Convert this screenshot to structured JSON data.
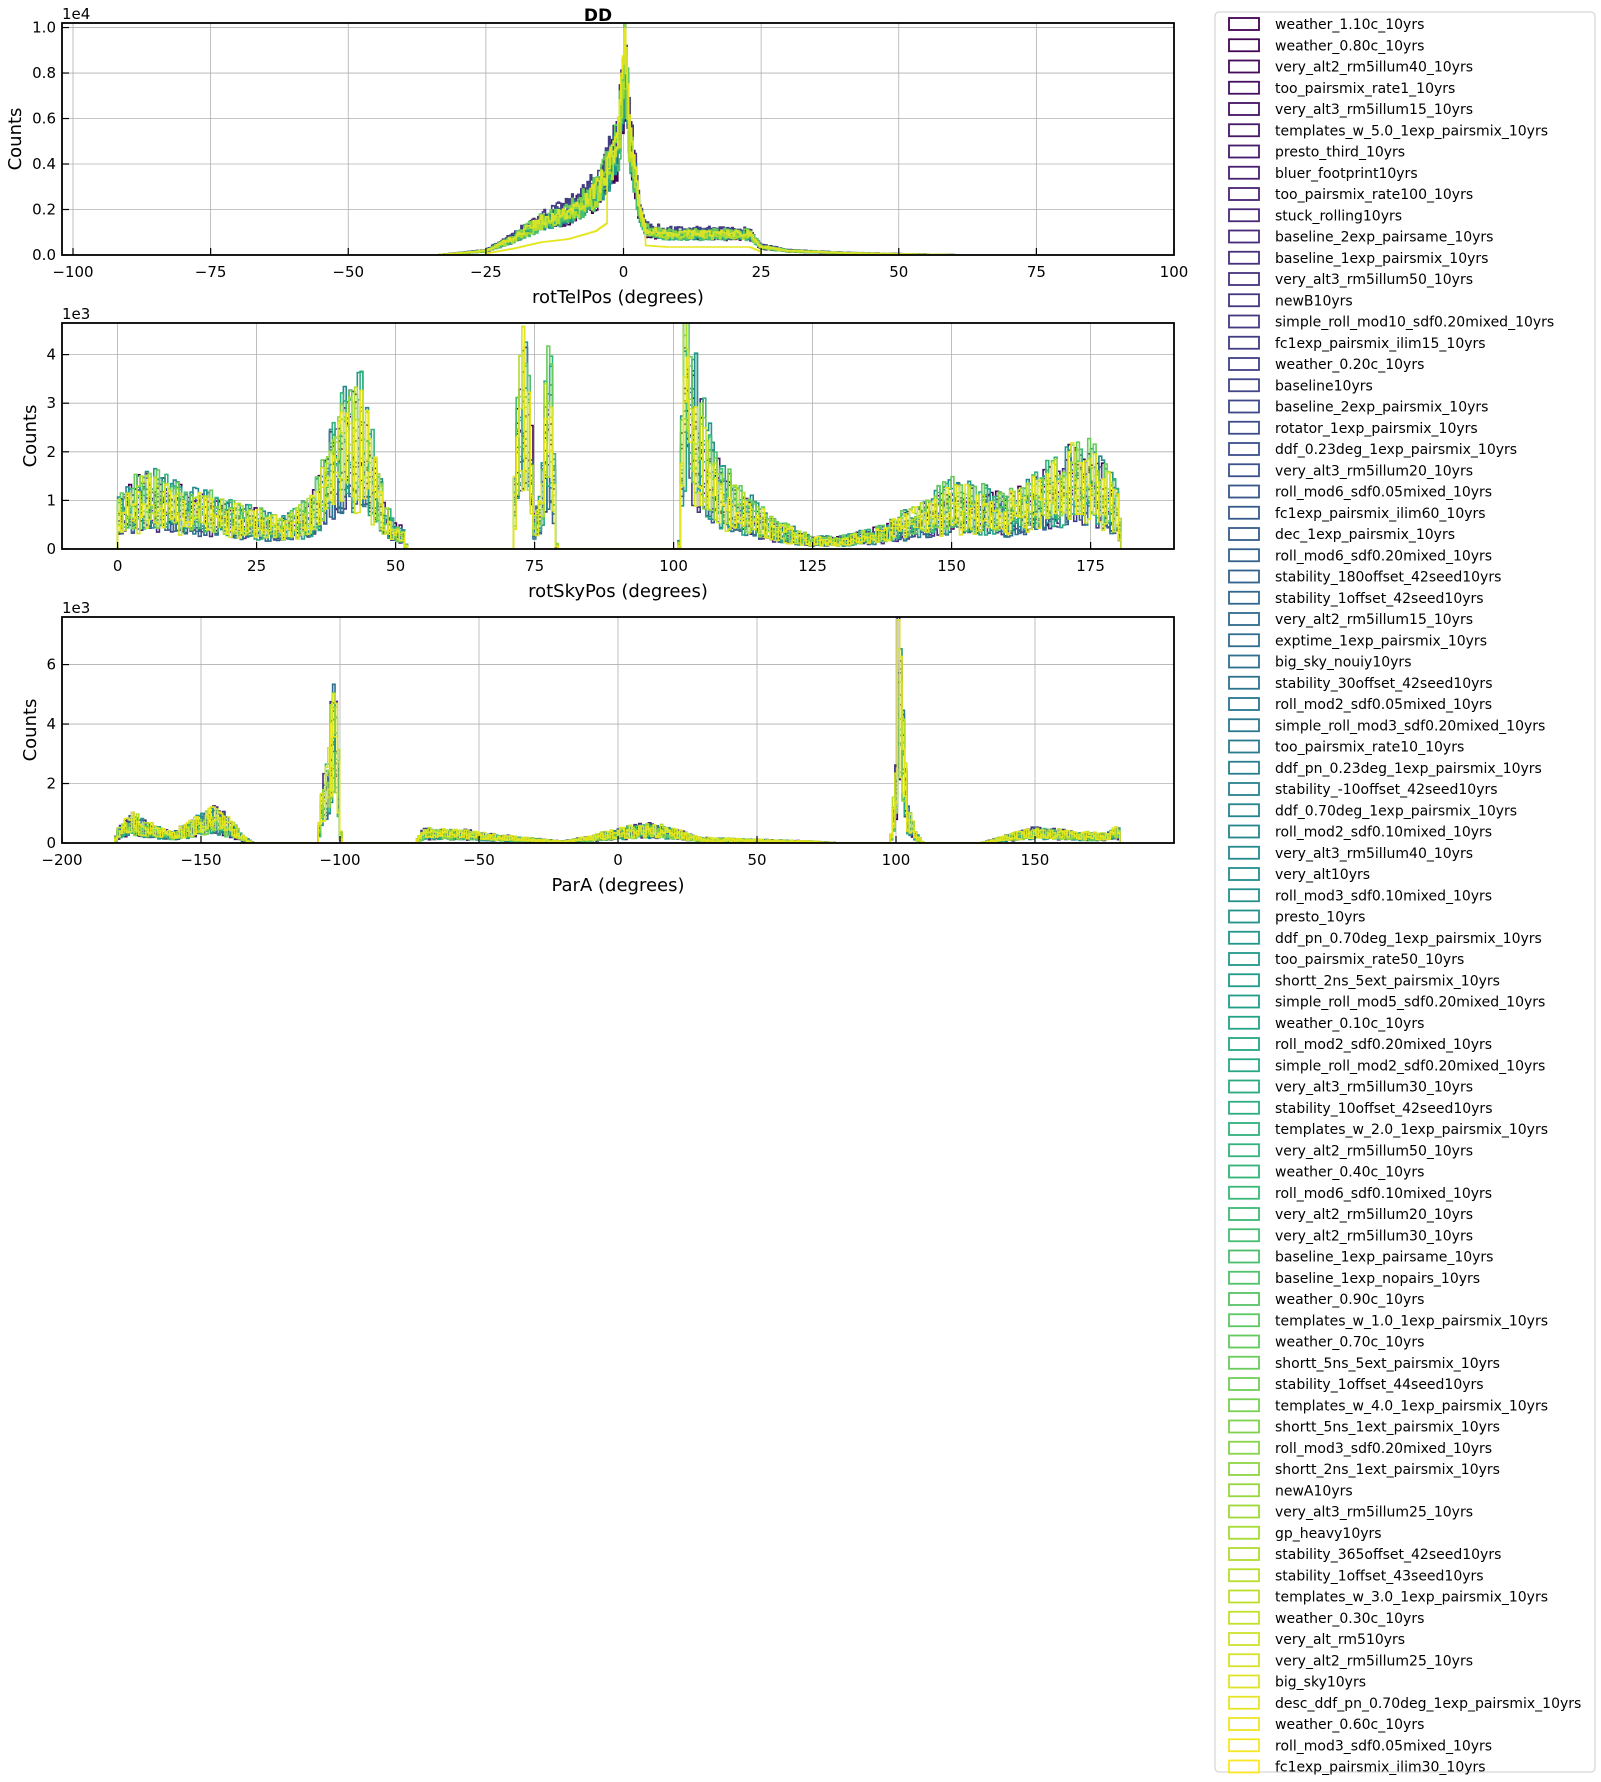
{
  "title": "DD",
  "chart_data": [
    {
      "type": "histogram",
      "xlabel": "rotTelPos (degrees)",
      "ylabel": "Counts",
      "y_multiplier": "1e4",
      "xlim": [
        -102,
        100
      ],
      "ylim": [
        0,
        1.02
      ],
      "xticks": [
        -100,
        -75,
        -50,
        -25,
        0,
        25,
        50,
        75,
        100
      ],
      "xtick_labels": [
        "−100",
        "−75",
        "−50",
        "−25",
        "0",
        "25",
        "50",
        "75",
        "100"
      ],
      "yticks": [
        0,
        0.2,
        0.4,
        0.6,
        0.8,
        1.0
      ],
      "ytick_labels": [
        "0.0",
        "0.2",
        "0.4",
        "0.6",
        "0.8",
        "1.0"
      ],
      "grid": true,
      "envelope": [
        [
          -34,
          0
        ],
        [
          -25,
          0.02
        ],
        [
          -20,
          0.08
        ],
        [
          -15,
          0.16
        ],
        [
          -10,
          0.2
        ],
        [
          -5,
          0.3
        ],
        [
          -3,
          0.4
        ],
        [
          -1,
          0.52
        ],
        [
          0,
          0.85
        ],
        [
          0.3,
          0.98
        ],
        [
          1,
          0.6
        ],
        [
          2,
          0.4
        ],
        [
          3,
          0.2
        ],
        [
          4,
          0.12
        ],
        [
          8,
          0.1
        ],
        [
          15,
          0.1
        ],
        [
          23,
          0.1
        ],
        [
          25,
          0.04
        ],
        [
          30,
          0.02
        ],
        [
          40,
          0.01
        ],
        [
          50,
          0.005
        ],
        [
          60,
          0.001
        ],
        [
          61,
          0
        ]
      ]
    },
    {
      "type": "histogram",
      "xlabel": "rotSkyPos (degrees)",
      "ylabel": "Counts",
      "y_multiplier": "1e3",
      "xlim": [
        -10,
        190
      ],
      "ylim": [
        0,
        4.65
      ],
      "xticks": [
        0,
        25,
        50,
        75,
        100,
        125,
        150,
        175
      ],
      "xtick_labels": [
        "0",
        "25",
        "50",
        "75",
        "100",
        "125",
        "150",
        "175"
      ],
      "yticks": [
        0,
        1,
        2,
        3,
        4
      ],
      "ytick_labels": [
        "0",
        "1",
        "2",
        "3",
        "4"
      ],
      "grid": true,
      "envelope": [
        [
          0,
          0.8
        ],
        [
          5,
          1.3
        ],
        [
          10,
          1.1
        ],
        [
          20,
          0.8
        ],
        [
          30,
          0.5
        ],
        [
          35,
          0.9
        ],
        [
          38,
          1.8
        ],
        [
          41,
          2.6
        ],
        [
          44,
          2.8
        ],
        [
          46,
          1.8
        ],
        [
          48,
          0.8
        ],
        [
          50,
          0.4
        ],
        [
          51.5,
          0.4
        ],
        [
          52,
          0
        ],
        [
          71,
          0
        ],
        [
          72,
          2.8
        ],
        [
          73,
          4.1
        ],
        [
          74,
          3.2
        ],
        [
          75,
          0.5
        ],
        [
          76,
          1.0
        ],
        [
          77,
          2.8
        ],
        [
          78,
          3.4
        ],
        [
          79,
          0
        ],
        [
          101,
          0
        ],
        [
          102,
          4.3
        ],
        [
          103,
          3.5
        ],
        [
          105,
          2.5
        ],
        [
          108,
          1.5
        ],
        [
          112,
          1.0
        ],
        [
          118,
          0.5
        ],
        [
          125,
          0.2
        ],
        [
          130,
          0.2
        ],
        [
          138,
          0.4
        ],
        [
          145,
          0.8
        ],
        [
          150,
          1.1
        ],
        [
          160,
          0.9
        ],
        [
          168,
          1.4
        ],
        [
          172,
          1.8
        ],
        [
          176,
          1.6
        ],
        [
          180,
          1.0
        ],
        [
          180.5,
          0
        ]
      ]
    },
    {
      "type": "histogram",
      "xlabel": "ParA (degrees)",
      "ylabel": "Counts",
      "y_multiplier": "1e3",
      "xlim": [
        -200,
        200
      ],
      "ylim": [
        0,
        7.6
      ],
      "xticks": [
        -200,
        -150,
        -100,
        -50,
        0,
        50,
        100,
        150
      ],
      "xtick_labels": [
        "−200",
        "−150",
        "−100",
        "−50",
        "0",
        "50",
        "100",
        "150"
      ],
      "yticks": [
        0,
        2,
        4,
        6
      ],
      "ytick_labels": [
        "0",
        "2",
        "4",
        "6"
      ],
      "grid": true,
      "envelope": [
        [
          -181,
          0
        ],
        [
          -180,
          0.4
        ],
        [
          -175,
          0.85
        ],
        [
          -170,
          0.6
        ],
        [
          -160,
          0.3
        ],
        [
          -150,
          0.8
        ],
        [
          -145,
          1.0
        ],
        [
          -140,
          0.7
        ],
        [
          -135,
          0.2
        ],
        [
          -131,
          0
        ],
        [
          -108,
          0
        ],
        [
          -106,
          1.8
        ],
        [
          -104,
          2.5
        ],
        [
          -102,
          5.7
        ],
        [
          -101,
          4.0
        ],
        [
          -100,
          0.5
        ],
        [
          -99,
          0
        ],
        [
          -73,
          0
        ],
        [
          -70,
          0.4
        ],
        [
          -55,
          0.35
        ],
        [
          -40,
          0.2
        ],
        [
          -20,
          0.05
        ],
        [
          -10,
          0.2
        ],
        [
          0,
          0.4
        ],
        [
          10,
          0.55
        ],
        [
          20,
          0.4
        ],
        [
          30,
          0.15
        ],
        [
          50,
          0.1
        ],
        [
          70,
          0.05
        ],
        [
          80,
          0
        ],
        [
          98,
          0
        ],
        [
          100,
          2.0
        ],
        [
          101,
          7.2
        ],
        [
          102,
          5.0
        ],
        [
          104,
          1.2
        ],
        [
          107,
          0.3
        ],
        [
          110,
          0
        ],
        [
          130,
          0
        ],
        [
          135,
          0.1
        ],
        [
          150,
          0.45
        ],
        [
          160,
          0.35
        ],
        [
          175,
          0.25
        ],
        [
          180,
          0.5
        ],
        [
          180.5,
          0
        ]
      ]
    }
  ],
  "legend": {
    "placement": "outside-right",
    "entries": [
      "weather_1.10c_10yrs",
      "weather_0.80c_10yrs",
      "very_alt2_rm5illum40_10yrs",
      "too_pairsmix_rate1_10yrs",
      "very_alt3_rm5illum15_10yrs",
      "templates_w_5.0_1exp_pairsmix_10yrs",
      "presto_third_10yrs",
      "bluer_footprint10yrs",
      "too_pairsmix_rate100_10yrs",
      "stuck_rolling10yrs",
      "baseline_2exp_pairsame_10yrs",
      "baseline_1exp_pairsmix_10yrs",
      "very_alt3_rm5illum50_10yrs",
      "newB10yrs",
      "simple_roll_mod10_sdf0.20mixed_10yrs",
      "fc1exp_pairsmix_ilim15_10yrs",
      "weather_0.20c_10yrs",
      "baseline10yrs",
      "baseline_2exp_pairsmix_10yrs",
      "rotator_1exp_pairsmix_10yrs",
      "ddf_0.23deg_1exp_pairsmix_10yrs",
      "very_alt3_rm5illum20_10yrs",
      "roll_mod6_sdf0.05mixed_10yrs",
      "fc1exp_pairsmix_ilim60_10yrs",
      "dec_1exp_pairsmix_10yrs",
      "roll_mod6_sdf0.20mixed_10yrs",
      "stability_180offset_42seed10yrs",
      "stability_1offset_42seed10yrs",
      "very_alt2_rm5illum15_10yrs",
      "exptime_1exp_pairsmix_10yrs",
      "big_sky_nouiy10yrs",
      "stability_30offset_42seed10yrs",
      "roll_mod2_sdf0.05mixed_10yrs",
      "simple_roll_mod3_sdf0.20mixed_10yrs",
      "too_pairsmix_rate10_10yrs",
      "ddf_pn_0.23deg_1exp_pairsmix_10yrs",
      "stability_-10offset_42seed10yrs",
      "ddf_0.70deg_1exp_pairsmix_10yrs",
      "roll_mod2_sdf0.10mixed_10yrs",
      "very_alt3_rm5illum40_10yrs",
      "very_alt10yrs",
      "roll_mod3_sdf0.10mixed_10yrs",
      "presto_10yrs",
      "ddf_pn_0.70deg_1exp_pairsmix_10yrs",
      "too_pairsmix_rate50_10yrs",
      "shortt_2ns_5ext_pairsmix_10yrs",
      "simple_roll_mod5_sdf0.20mixed_10yrs",
      "weather_0.10c_10yrs",
      "roll_mod2_sdf0.20mixed_10yrs",
      "simple_roll_mod2_sdf0.20mixed_10yrs",
      "very_alt3_rm5illum30_10yrs",
      "stability_10offset_42seed10yrs",
      "templates_w_2.0_1exp_pairsmix_10yrs",
      "very_alt2_rm5illum50_10yrs",
      "weather_0.40c_10yrs",
      "roll_mod6_sdf0.10mixed_10yrs",
      "very_alt2_rm5illum20_10yrs",
      "very_alt2_rm5illum30_10yrs",
      "baseline_1exp_pairsame_10yrs",
      "baseline_1exp_nopairs_10yrs",
      "weather_0.90c_10yrs",
      "templates_w_1.0_1exp_pairsmix_10yrs",
      "weather_0.70c_10yrs",
      "shortt_5ns_5ext_pairsmix_10yrs",
      "stability_1offset_44seed10yrs",
      "templates_w_4.0_1exp_pairsmix_10yrs",
      "shortt_5ns_1ext_pairsmix_10yrs",
      "roll_mod3_sdf0.20mixed_10yrs",
      "shortt_2ns_1ext_pairsmix_10yrs",
      "newA10yrs",
      "very_alt3_rm5illum25_10yrs",
      "gp_heavy10yrs",
      "stability_365offset_42seed10yrs",
      "stability_1offset_43seed10yrs",
      "templates_w_3.0_1exp_pairsmix_10yrs",
      "weather_0.30c_10yrs",
      "very_alt_rm510yrs",
      "very_alt2_rm5illum25_10yrs",
      "big_sky10yrs",
      "desc_ddf_pn_0.70deg_1exp_pairsmix_10yrs",
      "weather_0.60c_10yrs",
      "roll_mod3_sdf0.05mixed_10yrs",
      "fc1exp_pairsmix_ilim30_10yrs"
    ]
  },
  "colormap_stops": [
    "#440154",
    "#482878",
    "#3e4989",
    "#31688e",
    "#26828e",
    "#1f9e89",
    "#35b779",
    "#6ece58",
    "#b5de2b",
    "#fde725"
  ],
  "highlight_color": "#e5e51e"
}
